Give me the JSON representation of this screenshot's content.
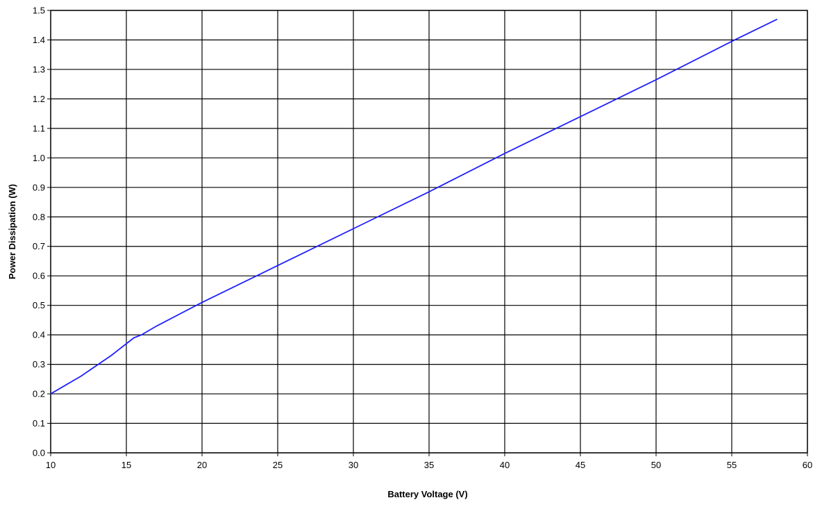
{
  "chart_data": {
    "type": "line",
    "xlabel": "Battery Voltage (V)",
    "ylabel": "Power Dissipation (W)",
    "xlim": [
      10,
      60
    ],
    "ylim": [
      0.0,
      1.5
    ],
    "x_ticks": [
      "10",
      "15",
      "20",
      "25",
      "30",
      "35",
      "40",
      "45",
      "50",
      "55",
      "60"
    ],
    "y_ticks": [
      "0.0",
      "0.1",
      "0.2",
      "0.3",
      "0.4",
      "0.5",
      "0.6",
      "0.7",
      "0.8",
      "0.9",
      "1.0",
      "1.1",
      "1.2",
      "1.3",
      "1.4",
      "1.5"
    ],
    "grid": true,
    "legend": "none",
    "series": [
      {
        "color": "#1f1fff",
        "x": [
          10,
          12,
          14,
          15,
          15.5,
          16,
          17,
          20,
          25,
          30,
          35,
          40,
          45,
          50,
          55,
          58
        ],
        "y": [
          0.2,
          0.26,
          0.33,
          0.37,
          0.39,
          0.4,
          0.43,
          0.51,
          0.635,
          0.76,
          0.885,
          1.015,
          1.14,
          1.265,
          1.395,
          1.47
        ]
      }
    ]
  }
}
